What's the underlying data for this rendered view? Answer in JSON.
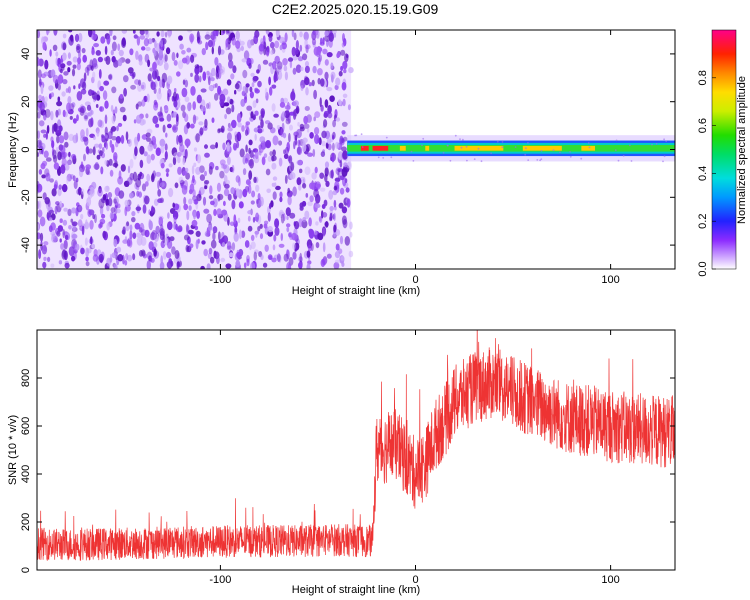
{
  "title": "C2E2.2025.020.15.19.G09",
  "chart_data": [
    {
      "type": "heatmap",
      "xlabel": "Height of straight line (km)",
      "ylabel": "Frequency (Hz)",
      "xlim": [
        -194,
        133
      ],
      "ylim": [
        -50,
        50
      ],
      "xticks": [
        -100,
        0,
        100
      ],
      "yticks": [
        -40,
        -20,
        0,
        20,
        40
      ],
      "noise_region": {
        "x_end": -33
      },
      "signal_band": {
        "x_start": -35,
        "x_end": 133,
        "center_hz": 0.5,
        "halfwidth_hz": 2.5
      },
      "colorbar": {
        "label": "Normalized spectral amplitude",
        "range": [
          0,
          1
        ],
        "ticks": [
          0.0,
          0.2,
          0.4,
          0.6,
          0.8
        ]
      }
    },
    {
      "type": "line",
      "xlabel": "Height of straight line (km)",
      "ylabel": "SNR (10 * v/v)",
      "xlim": [
        -194,
        133
      ],
      "ylim": [
        0,
        1000
      ],
      "xticks": [
        -100,
        0,
        100
      ],
      "yticks": [
        0,
        200,
        400,
        600,
        800
      ],
      "line_color": "#ee3333",
      "series": [
        {
          "x": [
            -194,
            -180,
            -150,
            -120,
            -90,
            -60,
            -40,
            -22,
            -20,
            -10,
            0,
            5,
            10,
            15,
            20,
            30,
            40,
            50,
            60,
            70,
            80,
            90,
            100,
            110,
            120,
            133
          ],
          "y": [
            110,
            105,
            110,
            115,
            120,
            120,
            125,
            120,
            500,
            520,
            400,
            440,
            560,
            620,
            700,
            760,
            780,
            740,
            700,
            660,
            630,
            620,
            600,
            590,
            580,
            575
          ]
        }
      ]
    }
  ],
  "colors": {
    "noise_purple": "#6a1fd0",
    "signal_red": "#ee3333"
  }
}
